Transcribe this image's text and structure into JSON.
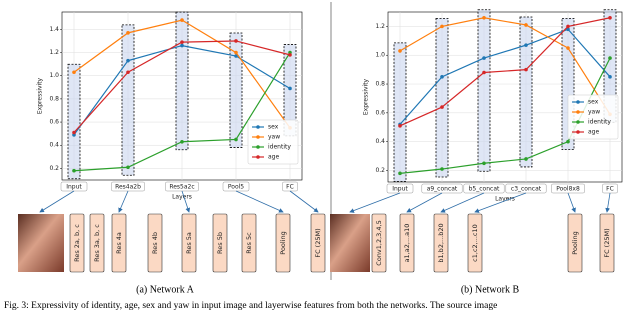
{
  "chart_data": [
    {
      "type": "line",
      "xlabel": "Layers",
      "ylabel": "Expressivity",
      "categories": [
        "Input",
        "Res4a2b",
        "Res5a2c",
        "Pool5",
        "FC"
      ],
      "series": [
        {
          "name": "sex",
          "color": "#1f77b4",
          "values": [
            0.49,
            1.13,
            1.26,
            1.17,
            0.89
          ]
        },
        {
          "name": "yaw",
          "color": "#ff7f0e",
          "values": [
            1.03,
            1.37,
            1.48,
            1.2,
            0.55
          ]
        },
        {
          "name": "identity",
          "color": "#2ca02c",
          "values": [
            0.18,
            0.21,
            0.43,
            0.45,
            1.2
          ]
        },
        {
          "name": "age",
          "color": "#d62728",
          "values": [
            0.51,
            1.03,
            1.29,
            1.3,
            1.18
          ]
        }
      ],
      "ylim": [
        0.1,
        1.55
      ],
      "yticks": [
        0.2,
        0.4,
        0.6,
        0.8,
        {
          "value": 1.0,
          "label": "1.0"
        },
        1.2,
        1.4
      ],
      "grid": true,
      "legend": "lower right"
    },
    {
      "type": "line",
      "xlabel": "Layers",
      "ylabel": "Expressivity",
      "categories": [
        "Input",
        "a9_concat",
        "b5_concat",
        "c3_concat",
        "Pool8x8",
        "FC"
      ],
      "series": [
        {
          "name": "sex",
          "color": "#1f77b4",
          "values": [
            0.52,
            0.85,
            0.98,
            1.07,
            1.18,
            0.85
          ]
        },
        {
          "name": "yaw",
          "color": "#ff7f0e",
          "values": [
            1.03,
            1.2,
            1.26,
            1.21,
            1.05,
            0.59
          ]
        },
        {
          "name": "identity",
          "color": "#2ca02c",
          "values": [
            0.18,
            0.21,
            0.25,
            0.28,
            0.4,
            0.98
          ]
        },
        {
          "name": "age",
          "color": "#d62728",
          "values": [
            0.51,
            0.64,
            0.88,
            0.9,
            1.2,
            1.26
          ]
        }
      ],
      "ylim": [
        0.12,
        1.3
      ],
      "yticks": [
        0.2,
        0.4,
        0.6,
        0.8,
        {
          "value": 1.0,
          "label": "1.0"
        },
        1.2
      ],
      "grid": true,
      "legend": "center right"
    }
  ],
  "diagrams": [
    {
      "blocks": [
        "Res 2a, b, c",
        "Res 3a, b, c",
        "Res 4a",
        "Res 4b",
        "Res 5a",
        "Res 5b",
        "Res 5c",
        "Pooling",
        "FC (25M)"
      ]
    },
    {
      "blocks": [
        "Conv1,2,3,4,5",
        "a1,a2,...a10",
        "b1,b2,...b20",
        "c1,c2,...c10",
        "Pooling",
        "FC (25M)"
      ]
    }
  ],
  "captions": [
    "(a) Network A",
    "(b) Network B"
  ],
  "figure_caption": "Fig. 3: Expressivity of identity, age, sex and yaw in input image and layerwise features from both the networks. The source image"
}
